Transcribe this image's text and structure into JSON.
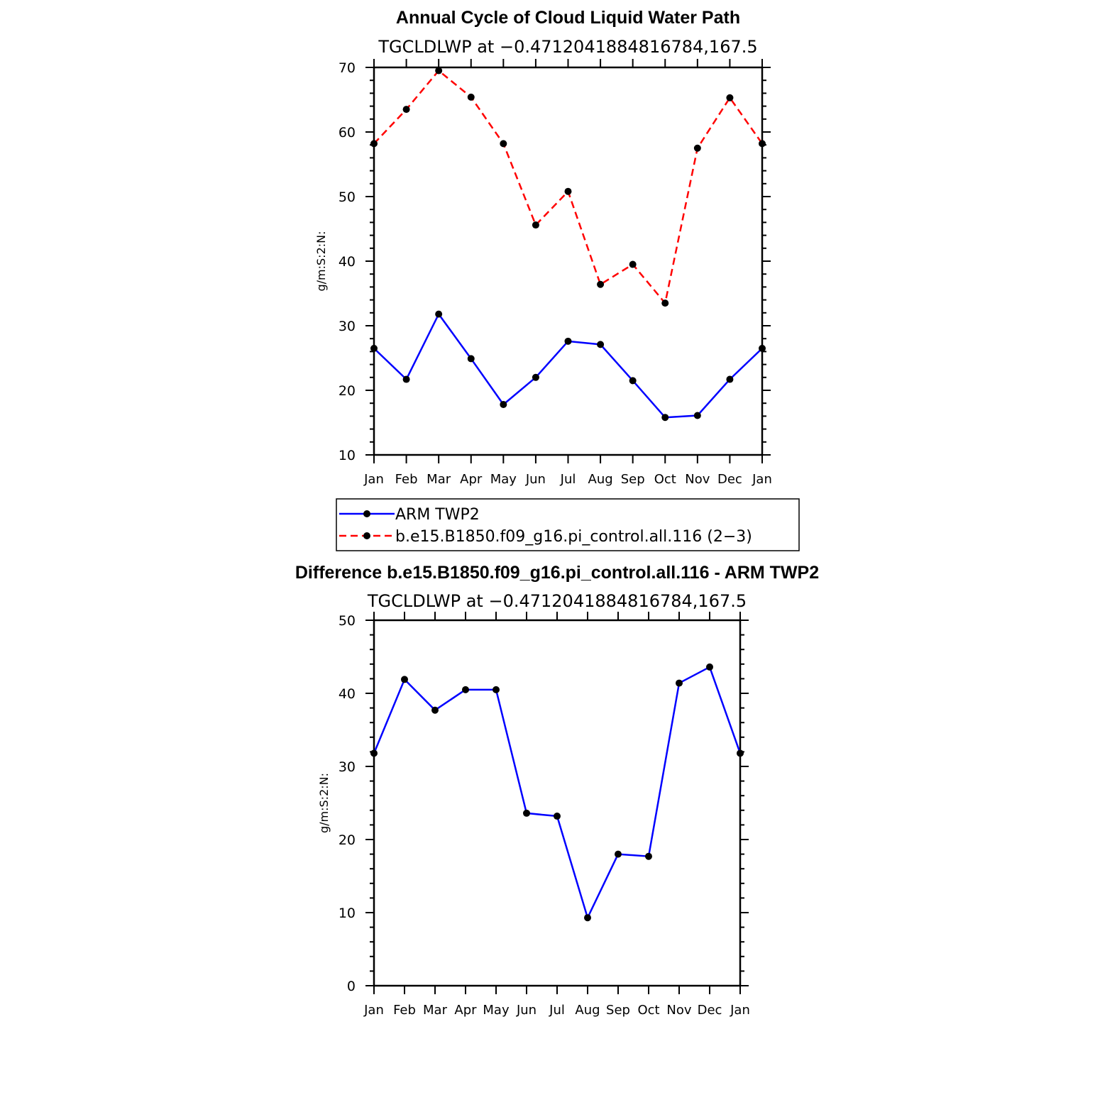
{
  "chart_data": [
    {
      "type": "line",
      "title": "Annual Cycle of Cloud Liquid Water Path",
      "subtitle": "TGCLDLWP at −0.4712041884816784,167.5",
      "ylabel": "g/m:S:2:N:",
      "xlabel": "",
      "categories": [
        "Jan",
        "Feb",
        "Mar",
        "Apr",
        "May",
        "Jun",
        "Jul",
        "Aug",
        "Sep",
        "Oct",
        "Nov",
        "Dec",
        "Jan"
      ],
      "ylim": [
        10,
        70
      ],
      "yticks": [
        10,
        20,
        30,
        40,
        50,
        60,
        70
      ],
      "grid": false,
      "legend_position": "below",
      "series": [
        {
          "name": "ARM TWP2",
          "color": "#0000ff",
          "dash": "solid",
          "values": [
            26.5,
            21.7,
            31.8,
            24.9,
            17.8,
            22.0,
            27.6,
            27.1,
            21.5,
            15.8,
            16.1,
            21.7,
            26.5
          ]
        },
        {
          "name": "b.e15.B1850.f09_g16.pi_control.all.116 (2−3)",
          "color": "#ff0000",
          "dash": "dashed",
          "values": [
            58.2,
            63.5,
            69.5,
            65.4,
            58.2,
            45.6,
            50.8,
            36.4,
            39.5,
            33.5,
            57.5,
            65.3,
            58.2
          ]
        }
      ]
    },
    {
      "type": "line",
      "title": "Difference b.e15.B1850.f09_g16.pi_control.all.116 - ARM TWP2",
      "subtitle": "TGCLDLWP at −0.4712041884816784,167.5",
      "ylabel": "g/m:S:2:N:",
      "xlabel": "",
      "categories": [
        "Jan",
        "Feb",
        "Mar",
        "Apr",
        "May",
        "Jun",
        "Jul",
        "Aug",
        "Sep",
        "Oct",
        "Nov",
        "Dec",
        "Jan"
      ],
      "ylim": [
        0,
        50
      ],
      "yticks": [
        0,
        10,
        20,
        30,
        40,
        50
      ],
      "grid": false,
      "series": [
        {
          "name": "",
          "color": "#0000ff",
          "dash": "solid",
          "values": [
            31.8,
            41.9,
            37.7,
            40.5,
            40.5,
            23.6,
            23.2,
            9.3,
            18.0,
            17.7,
            41.4,
            43.6,
            31.8
          ]
        }
      ]
    }
  ]
}
